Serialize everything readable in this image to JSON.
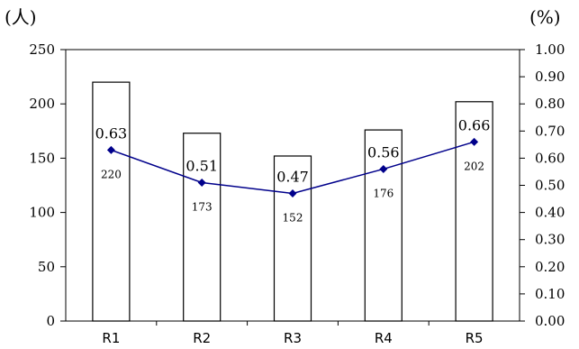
{
  "chart_data": {
    "type": "bar",
    "categories": [
      "R1",
      "R2",
      "R3",
      "R4",
      "R5"
    ],
    "left_axis_unit": "(人)",
    "right_axis_unit": "(%)",
    "left_ylim": [
      0,
      250
    ],
    "right_ylim": [
      0,
      1.0
    ],
    "left_ticks": [
      "0",
      "50",
      "100",
      "150",
      "200",
      "250"
    ],
    "right_ticks": [
      "0.00",
      "0.10",
      "0.20",
      "0.30",
      "0.40",
      "0.50",
      "0.60",
      "0.70",
      "0.80",
      "0.90",
      "1.00"
    ],
    "series": [
      {
        "type": "bar",
        "axis": "left",
        "values": [
          220,
          173,
          152,
          176,
          202
        ],
        "labels": [
          "220",
          "173",
          "152",
          "176",
          "202"
        ],
        "color": "#ffffff",
        "edge_color": "#000000"
      },
      {
        "type": "line",
        "axis": "right",
        "values": [
          0.63,
          0.51,
          0.47,
          0.56,
          0.66
        ],
        "labels": [
          "0.63",
          "0.51",
          "0.47",
          "0.56",
          "0.66"
        ],
        "color": "#00008b",
        "marker": "diamond"
      }
    ],
    "grid": false,
    "legend": "none"
  }
}
